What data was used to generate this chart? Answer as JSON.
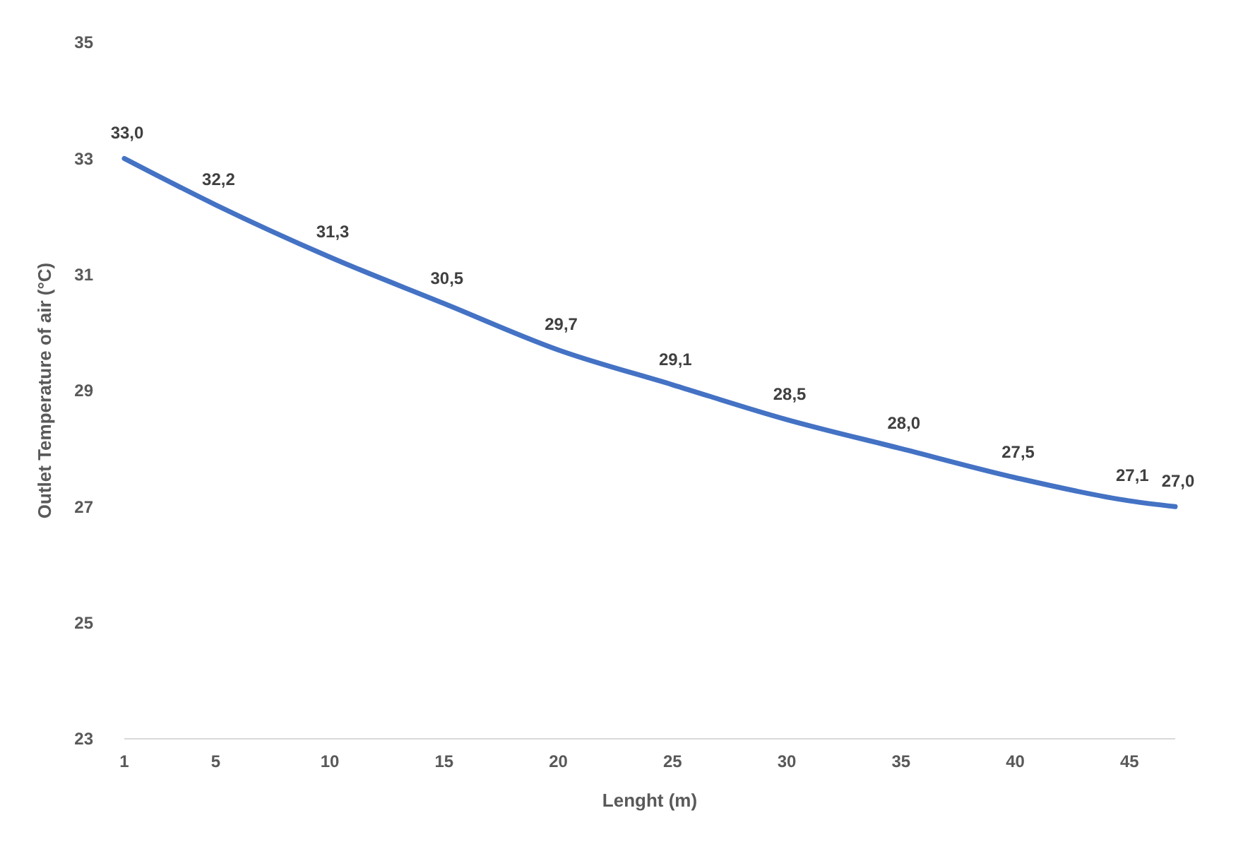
{
  "chart_data": {
    "type": "line",
    "xlabel": "Lenght (m)",
    "ylabel": "Outlet Temperature of air (°C)",
    "x": [
      1,
      5,
      10,
      15,
      20,
      25,
      30,
      35,
      40,
      45,
      47
    ],
    "series": [
      {
        "color": "#4472c4",
        "values": [
          33.0,
          32.2,
          31.3,
          30.5,
          29.7,
          29.1,
          28.5,
          28.0,
          27.5,
          27.1,
          27.0
        ],
        "value_labels": [
          "33,0",
          "32,2",
          "31,3",
          "30,5",
          "29,7",
          "29,1",
          "28,5",
          "28,0",
          "27,5",
          "27,1",
          "27,0"
        ]
      }
    ],
    "xlim": [
      1,
      47
    ],
    "xticks": [
      1,
      5,
      10,
      15,
      20,
      25,
      30,
      35,
      40,
      45
    ],
    "ylim": [
      23,
      35
    ],
    "yticks": [
      23,
      25,
      27,
      29,
      31,
      33,
      35
    ],
    "grid": false,
    "marker": "none",
    "line_style": "solid"
  }
}
